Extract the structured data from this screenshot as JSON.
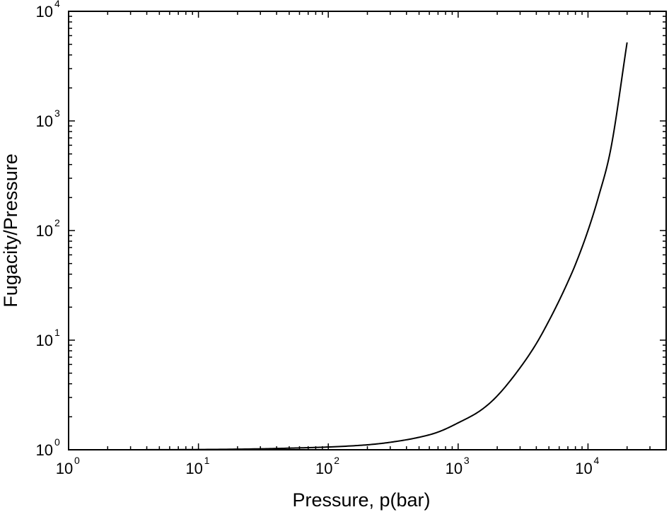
{
  "chart_data": {
    "type": "line",
    "xlabel": "Pressure, p(bar)",
    "ylabel": "Fugacity/Pressure",
    "xscale": "log",
    "yscale": "log",
    "xlim": [
      1,
      40000
    ],
    "ylim": [
      1,
      10000
    ],
    "grid": false,
    "legend": "none",
    "x_ticks": [
      {
        "base": "10",
        "exp": "0"
      },
      {
        "base": "10",
        "exp": "1"
      },
      {
        "base": "10",
        "exp": "2"
      },
      {
        "base": "10",
        "exp": "3"
      },
      {
        "base": "10",
        "exp": "4"
      }
    ],
    "y_ticks": [
      {
        "base": "10",
        "exp": "0"
      },
      {
        "base": "10",
        "exp": "1"
      },
      {
        "base": "10",
        "exp": "2"
      },
      {
        "base": "10",
        "exp": "3"
      },
      {
        "base": "10",
        "exp": "4"
      }
    ],
    "series": [
      {
        "color": "#000000",
        "x": [
          3,
          10,
          30,
          60,
          100,
          200,
          300,
          500,
          700,
          1000,
          1500,
          2000,
          3000,
          4000,
          5000,
          6000,
          7000,
          8000,
          10000,
          12000,
          15000,
          20000
        ],
        "y": [
          1.0,
          1.005,
          1.02,
          1.04,
          1.06,
          1.11,
          1.17,
          1.3,
          1.45,
          1.76,
          2.3,
          3.1,
          5.6,
          9.3,
          15,
          23,
          34,
          49,
          100,
          200,
          560,
          5200
        ]
      }
    ]
  }
}
